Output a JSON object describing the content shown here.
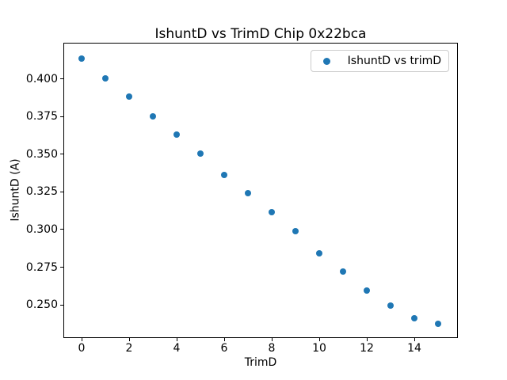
{
  "figure": {
    "background_color": "#ffffff",
    "text_color": "#000000",
    "legend_border_color": "#cccccc"
  },
  "chart_data": {
    "type": "scatter",
    "title": "IshuntD vs TrimD Chip 0x22bca",
    "xlabel": "TrimD",
    "ylabel": "IshuntD (A)",
    "grid": false,
    "xlim": [
      -0.767,
      15.833
    ],
    "ylim": [
      0.2279,
      0.4242
    ],
    "xticks": {
      "values": [
        0,
        2,
        4,
        6,
        8,
        10,
        12,
        14
      ],
      "labels": [
        "0",
        "2",
        "4",
        "6",
        "8",
        "10",
        "12",
        "14"
      ]
    },
    "yticks": {
      "values": [
        0.25,
        0.275,
        0.3,
        0.325,
        0.35,
        0.375,
        0.4
      ],
      "labels": [
        "0.250",
        "0.275",
        "0.300",
        "0.325",
        "0.350",
        "0.375",
        "0.400"
      ]
    },
    "series": [
      {
        "name": "IshuntD vs trimD",
        "marker": "circle",
        "marker_color": "#1f77b4",
        "x": [
          0,
          1,
          2,
          3,
          4,
          5,
          6,
          7,
          8,
          9,
          10,
          11,
          12,
          13,
          14,
          15
        ],
        "y": [
          0.4135,
          0.4005,
          0.3885,
          0.3755,
          0.363,
          0.3505,
          0.3365,
          0.324,
          0.3115,
          0.299,
          0.284,
          0.272,
          0.2597,
          0.2495,
          0.241,
          0.2375
        ]
      }
    ],
    "legend": {
      "position": "upper right",
      "entries": [
        {
          "label": "IshuntD vs trimD",
          "marker_color": "#1f77b4"
        }
      ]
    }
  }
}
